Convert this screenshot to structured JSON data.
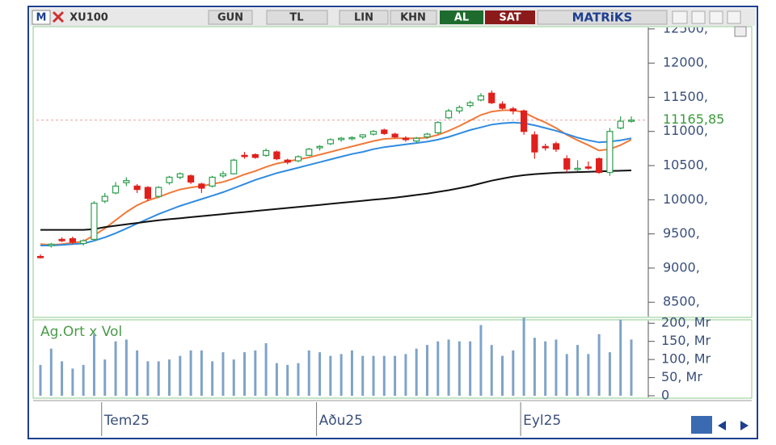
{
  "toolbar": {
    "menu": "M",
    "symbol": "XU100",
    "period": "GUN",
    "currency": "TL",
    "scale": "LIN",
    "style": "KHN",
    "buy": "AL",
    "sell": "SAT",
    "brand": "MATRiKS"
  },
  "chart_data": {
    "type": "candlestick",
    "categories": [
      null,
      null,
      null,
      null,
      null,
      null,
      "Tem25",
      null,
      null,
      null,
      null,
      null,
      null,
      null,
      null,
      null,
      null,
      null,
      null,
      null,
      null,
      null,
      null,
      null,
      null,
      null,
      "Aðu25",
      null,
      null,
      null,
      null,
      null,
      null,
      null,
      null,
      null,
      null,
      null,
      null,
      null,
      null,
      null,
      null,
      null,
      null,
      "Eyl25",
      null,
      null,
      null,
      null,
      null,
      null,
      null,
      null,
      null,
      null
    ],
    "open": [
      9170,
      9330,
      9420,
      9430,
      9360,
      9420,
      9980,
      10100,
      10250,
      10200,
      10180,
      10050,
      10250,
      10330,
      10350,
      10230,
      10200,
      10350,
      10380,
      10650,
      10660,
      10650,
      10700,
      10580,
      10570,
      10650,
      10760,
      10820,
      10880,
      10900,
      10920,
      10960,
      11020,
      10960,
      10900,
      10860,
      10920,
      10980,
      11200,
      11300,
      11380,
      11460,
      11560,
      11400,
      11330,
      11300,
      10950,
      10780,
      10820,
      10600,
      10440,
      10480,
      10600,
      10400,
      11050,
      11160
    ],
    "high": [
      9200,
      9370,
      9450,
      9460,
      9420,
      9980,
      10100,
      10260,
      10330,
      10230,
      10200,
      10200,
      10350,
      10400,
      10370,
      10250,
      10350,
      10420,
      10600,
      10700,
      10680,
      10750,
      10720,
      10600,
      10650,
      10760,
      10800,
      10900,
      10920,
      10930,
      10960,
      11020,
      11040,
      10980,
      10930,
      10920,
      10980,
      11150,
      11330,
      11380,
      11450,
      11560,
      11600,
      11440,
      11360,
      11320,
      11000,
      10820,
      10850,
      10650,
      10580,
      10560,
      10620,
      11050,
      11220,
      11220
    ],
    "low": [
      9140,
      9300,
      9380,
      9350,
      9330,
      9400,
      9950,
      10080,
      10200,
      10100,
      9980,
      10030,
      10220,
      10300,
      10230,
      10100,
      10180,
      10320,
      10370,
      10600,
      10600,
      10630,
      10580,
      10520,
      10550,
      10640,
      10720,
      10800,
      10850,
      10870,
      10890,
      10940,
      10950,
      10900,
      10850,
      10830,
      10890,
      10960,
      11180,
      11260,
      11350,
      11440,
      11400,
      11320,
      11250,
      10950,
      10600,
      10720,
      10700,
      10400,
      10420,
      10440,
      10380,
      10350,
      11030,
      11130
    ],
    "close": [
      9160,
      9350,
      9400,
      9380,
      9400,
      9950,
      10050,
      10200,
      10280,
      10150,
      10020,
      10180,
      10330,
      10380,
      10260,
      10170,
      10330,
      10380,
      10580,
      10640,
      10620,
      10720,
      10600,
      10550,
      10630,
      10740,
      10780,
      10880,
      10900,
      10910,
      10950,
      11000,
      10970,
      10920,
      10880,
      10900,
      10960,
      11130,
      11300,
      11350,
      11420,
      11520,
      11420,
      11340,
      11300,
      11000,
      10700,
      10760,
      10740,
      10450,
      10460,
      10470,
      10400,
      11000,
      11150,
      11165.85
    ],
    "up_color": "#2e9e4f",
    "down_color": "#e0201c",
    "lines": [
      {
        "color": "#f07a3a",
        "values": [
          9350,
          9340,
          9350,
          9370,
          9390,
          9480,
          9580,
          9700,
          9820,
          9920,
          9990,
          10040,
          10100,
          10150,
          10180,
          10200,
          10230,
          10260,
          10310,
          10370,
          10420,
          10480,
          10530,
          10560,
          10590,
          10620,
          10660,
          10700,
          10740,
          10780,
          10820,
          10860,
          10890,
          10900,
          10900,
          10900,
          10910,
          10950,
          11010,
          11080,
          11160,
          11240,
          11290,
          11310,
          11310,
          11280,
          11200,
          11130,
          11050,
          10950,
          10870,
          10800,
          10720,
          10740,
          10800,
          10880
        ]
      },
      {
        "color": "#2f8be0",
        "values": [
          9330,
          9330,
          9340,
          9350,
          9360,
          9400,
          9450,
          9510,
          9580,
          9650,
          9720,
          9790,
          9850,
          9910,
          9960,
          10010,
          10060,
          10110,
          10170,
          10230,
          10290,
          10340,
          10390,
          10430,
          10470,
          10510,
          10550,
          10590,
          10630,
          10670,
          10700,
          10740,
          10770,
          10790,
          10810,
          10830,
          10850,
          10880,
          10920,
          10970,
          11020,
          11060,
          11100,
          11120,
          11130,
          11120,
          11090,
          11050,
          11010,
          10960,
          10910,
          10870,
          10840,
          10850,
          10870,
          10900
        ]
      },
      {
        "color": "#111111",
        "values": [
          9560,
          9560,
          9560,
          9560,
          9560,
          9570,
          9600,
          9620,
          9640,
          9660,
          9680,
          9700,
          9715,
          9730,
          9745,
          9760,
          9775,
          9790,
          9805,
          9820,
          9835,
          9850,
          9865,
          9880,
          9895,
          9910,
          9925,
          9940,
          9955,
          9970,
          9985,
          10000,
          10015,
          10030,
          10050,
          10070,
          10090,
          10115,
          10140,
          10170,
          10200,
          10240,
          10280,
          10310,
          10340,
          10360,
          10375,
          10385,
          10395,
          10400,
          10405,
          10410,
          10415,
          10420,
          10425,
          10430
        ]
      }
    ],
    "last_price": {
      "value": 11165.85,
      "label": "11165,85",
      "color": "#3a9a3a"
    },
    "ylim": [
      8290,
      12510
    ],
    "yticks": [
      {
        "value": 8500,
        "label": "8500,"
      },
      {
        "value": 9000,
        "label": "9000,"
      },
      {
        "value": 9500,
        "label": "9500,"
      },
      {
        "value": 10000,
        "label": "10000,"
      },
      {
        "value": 10500,
        "label": "10500,"
      },
      {
        "value": 11000,
        "label": "11000,"
      },
      {
        "value": 11500,
        "label": "11500,"
      },
      {
        "value": 12000,
        "label": "12000,"
      },
      {
        "value": 12500,
        "label": "12500,"
      }
    ],
    "volume": {
      "title": "Ag.Ort x Vol",
      "color": "#7fa3c8",
      "values": [
        85,
        130,
        95,
        75,
        85,
        170,
        100,
        150,
        155,
        125,
        95,
        95,
        100,
        110,
        125,
        125,
        95,
        120,
        100,
        120,
        125,
        145,
        90,
        85,
        90,
        125,
        120,
        110,
        115,
        125,
        110,
        110,
        110,
        110,
        115,
        130,
        140,
        150,
        155,
        150,
        150,
        195,
        140,
        110,
        125,
        215,
        160,
        150,
        155,
        115,
        140,
        115,
        170,
        120,
        210,
        155
      ],
      "ylim": [
        0,
        205
      ],
      "yticks": [
        0,
        {
          "value": 50,
          "label": "50, Mr"
        },
        {
          "value": 100,
          "label": "100, Mr"
        },
        {
          "value": 150,
          "label": "150, Mr"
        },
        {
          "value": 200,
          "label": "200, Mr"
        }
      ]
    }
  }
}
